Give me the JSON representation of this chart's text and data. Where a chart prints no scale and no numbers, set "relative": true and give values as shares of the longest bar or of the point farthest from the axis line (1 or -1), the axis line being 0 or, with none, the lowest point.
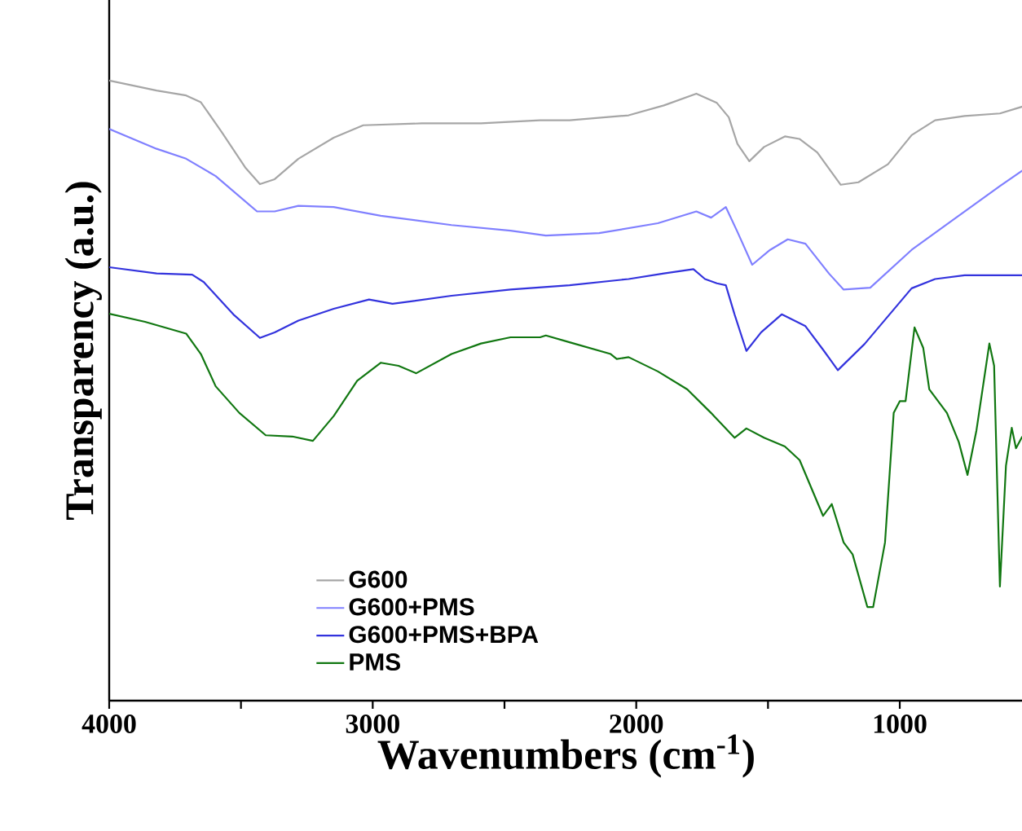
{
  "chart_data": {
    "type": "line",
    "relative": true,
    "xlabel": "Wavenumbers (cm$^{-1}$)",
    "ylabel": "Transparency (a.u.)",
    "xlim": [
      4000,
      530
    ],
    "xticks": [
      4000,
      {
        "value": 3500,
        "label": null
      },
      3000,
      {
        "value": 2500,
        "label": null
      },
      2000,
      {
        "value": 1500,
        "label": null
      },
      1000
    ],
    "legend": "bottom left",
    "grid": false,
    "marker": "none",
    "line_style": "solid",
    "tick_labels": "x",
    "series": [
      {
        "name": "G600",
        "color": "#a6a6a6",
        "x": [
          4000,
          3820,
          3708,
          3652,
          3573,
          3484,
          3428,
          3372,
          3282,
          3148,
          3036,
          2813,
          2589,
          2365,
          2253,
          2029,
          1895,
          1772,
          1694,
          1649,
          1616,
          1571,
          1515,
          1436,
          1381,
          1313,
          1224,
          1157,
          1045,
          955,
          866,
          754,
          620,
          535
        ],
        "values": [
          1.0,
          0.984,
          0.976,
          0.965,
          0.917,
          0.86,
          0.833,
          0.841,
          0.874,
          0.908,
          0.928,
          0.931,
          0.931,
          0.936,
          0.936,
          0.944,
          0.96,
          0.979,
          0.964,
          0.941,
          0.898,
          0.87,
          0.893,
          0.91,
          0.906,
          0.884,
          0.832,
          0.836,
          0.865,
          0.912,
          0.936,
          0.943,
          0.947,
          0.958
        ]
      },
      {
        "name": "G600+PMS",
        "color": "#8080ff",
        "x": [
          4000,
          3820,
          3708,
          3596,
          3439,
          3372,
          3282,
          3148,
          2969,
          2701,
          2477,
          2343,
          2141,
          1918,
          1772,
          1716,
          1660,
          1616,
          1560,
          1492,
          1425,
          1358,
          1269,
          1213,
          1112,
          955,
          799,
          620,
          535
        ],
        "values": [
          0.922,
          0.89,
          0.874,
          0.846,
          0.789,
          0.789,
          0.798,
          0.796,
          0.782,
          0.767,
          0.758,
          0.75,
          0.754,
          0.77,
          0.789,
          0.779,
          0.796,
          0.756,
          0.703,
          0.727,
          0.744,
          0.737,
          0.689,
          0.663,
          0.666,
          0.727,
          0.775,
          0.83,
          0.855
        ]
      },
      {
        "name": "G600+PMS+BPA",
        "color": "#3333dd",
        "x": [
          4000,
          3820,
          3685,
          3641,
          3529,
          3428,
          3372,
          3282,
          3148,
          3014,
          2925,
          2701,
          2477,
          2253,
          2029,
          1895,
          1783,
          1739,
          1694,
          1660,
          1627,
          1582,
          1526,
          1448,
          1358,
          1291,
          1235,
          1134,
          955,
          866,
          754,
          535
        ],
        "values": [
          0.699,
          0.689,
          0.687,
          0.675,
          0.623,
          0.585,
          0.594,
          0.613,
          0.632,
          0.647,
          0.64,
          0.653,
          0.663,
          0.67,
          0.68,
          0.689,
          0.696,
          0.68,
          0.673,
          0.67,
          0.623,
          0.564,
          0.594,
          0.623,
          0.604,
          0.566,
          0.533,
          0.575,
          0.665,
          0.68,
          0.686,
          0.686
        ]
      },
      {
        "name": "PMS",
        "color": "#117711",
        "x": [
          4000,
          3864,
          3708,
          3652,
          3596,
          3506,
          3406,
          3305,
          3227,
          3148,
          3059,
          2969,
          2902,
          2835,
          2701,
          2589,
          2477,
          2365,
          2343,
          2253,
          2097,
          2074,
          2029,
          1918,
          1806,
          1716,
          1627,
          1582,
          1515,
          1436,
          1380,
          1291,
          1258,
          1213,
          1179,
          1123,
          1101,
          1056,
          1023,
          1000,
          978,
          944,
          911,
          888,
          821,
          776,
          743,
          709,
          660,
          642,
          620,
          597,
          575,
          559,
          535
        ],
        "values": [
          0.624,
          0.611,
          0.592,
          0.559,
          0.507,
          0.464,
          0.428,
          0.426,
          0.419,
          0.459,
          0.516,
          0.545,
          0.54,
          0.528,
          0.559,
          0.576,
          0.586,
          0.586,
          0.589,
          0.578,
          0.559,
          0.551,
          0.554,
          0.531,
          0.502,
          0.464,
          0.424,
          0.439,
          0.424,
          0.41,
          0.388,
          0.298,
          0.317,
          0.255,
          0.236,
          0.151,
          0.151,
          0.255,
          0.464,
          0.483,
          0.483,
          0.602,
          0.569,
          0.502,
          0.464,
          0.417,
          0.364,
          0.436,
          0.576,
          0.54,
          0.184,
          0.379,
          0.44,
          0.407,
          0.426
        ]
      }
    ]
  }
}
